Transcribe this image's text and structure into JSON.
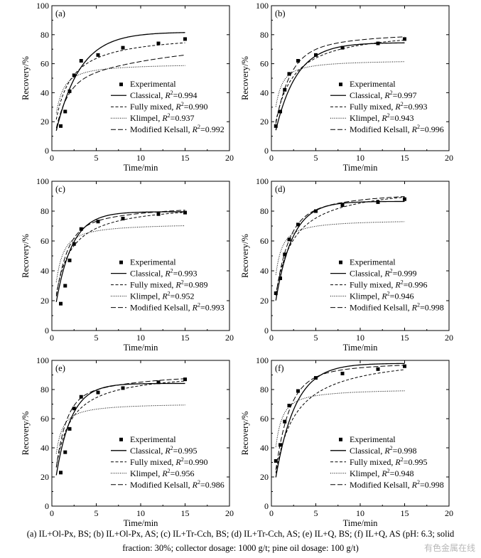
{
  "chart_data": [
    {
      "type": "line",
      "panel_label": "(a)",
      "xlabel": "Time/min",
      "ylabel": "Recovery/%",
      "xlim": [
        0,
        20
      ],
      "ylim": [
        0,
        100
      ],
      "xticks": [
        0,
        5,
        10,
        15,
        20
      ],
      "yticks": [
        0,
        20,
        40,
        60,
        80,
        100
      ],
      "legend_position": "center-right",
      "experimental": {
        "name": "Experimental",
        "x": [
          1,
          1.5,
          2,
          2.5,
          3.3,
          5.2,
          8,
          12,
          15
        ],
        "y": [
          17,
          27,
          41,
          52,
          62,
          66,
          71,
          74,
          77
        ]
      },
      "series": [
        {
          "name": "Classical",
          "r2": "0.994",
          "style": "solid",
          "model": "classical",
          "rmax": 81.8,
          "k": 0.37
        },
        {
          "name": "Fully mixed",
          "r2": "0.990",
          "style": "dashed",
          "model": "fullymixed",
          "rmax": 81.3,
          "k": 0.72
        },
        {
          "name": "Klimpel",
          "r2": "0.937",
          "style": "dotted",
          "model": "klimpel",
          "rmax": 60.3,
          "k": 2.5
        },
        {
          "name": "Modified Kelsall",
          "r2": "0.992",
          "style": "longdash",
          "model": "kelsall",
          "rmax": 75,
          "kf": 0.48,
          "fast": 0.6,
          "ks": 0.0
        }
      ]
    },
    {
      "type": "line",
      "panel_label": "(b)",
      "xlabel": "Time/min",
      "ylabel": "Recovery/%",
      "xlim": [
        0,
        20
      ],
      "ylim": [
        0,
        100
      ],
      "xticks": [
        0,
        5,
        10,
        15,
        20
      ],
      "yticks": [
        0,
        20,
        40,
        60,
        80,
        100
      ],
      "legend_position": "center-right",
      "experimental": {
        "name": "Experimental",
        "x": [
          0.5,
          1,
          1.5,
          2,
          3,
          5,
          8,
          12,
          15
        ],
        "y": [
          17,
          27,
          42,
          53,
          62,
          66,
          71,
          74,
          77
        ]
      },
      "series": [
        {
          "name": "Classical",
          "r2": "0.997",
          "style": "solid",
          "model": "classical",
          "rmax": 74.5,
          "k": 0.42
        },
        {
          "name": "Fully mixed",
          "r2": "0.993",
          "style": "dashed",
          "model": "fullymixed",
          "rmax": 84.5,
          "k": 0.62
        },
        {
          "name": "Klimpel",
          "r2": "0.943",
          "style": "dotted",
          "model": "klimpel",
          "rmax": 62.8,
          "k": 3.0
        },
        {
          "name": "Modified Kelsall",
          "r2": "0.996",
          "style": "longdash",
          "model": "kelsall",
          "rmax": 80.5,
          "kf": 0.4,
          "fast": 0.8,
          "ks": 0.06
        }
      ]
    },
    {
      "type": "line",
      "panel_label": "(c)",
      "xlabel": "Time/min",
      "ylabel": "Recovery/%",
      "xlim": [
        0,
        20
      ],
      "ylim": [
        0,
        100
      ],
      "xticks": [
        0,
        5,
        10,
        15,
        20
      ],
      "yticks": [
        0,
        20,
        40,
        60,
        80,
        100
      ],
      "legend_position": "center-right",
      "experimental": {
        "name": "Experimental",
        "x": [
          1,
          1.5,
          2,
          2.5,
          3.3,
          5.2,
          8,
          12,
          15
        ],
        "y": [
          18,
          30,
          47,
          58,
          68,
          73,
          75,
          78,
          79
        ]
      },
      "series": [
        {
          "name": "Classical",
          "r2": "0.993",
          "style": "solid",
          "model": "classical",
          "rmax": 79.6,
          "k": 0.55
        },
        {
          "name": "Fully mixed",
          "r2": "0.989",
          "style": "dashed",
          "model": "fullymixed",
          "rmax": 86.0,
          "k": 0.78
        },
        {
          "name": "Klimpel",
          "r2": "0.952",
          "style": "dotted",
          "model": "klimpel",
          "rmax": 72.0,
          "k": 2.7
        },
        {
          "name": "Modified Kelsall",
          "r2": "0.993",
          "style": "longdash",
          "model": "kelsall",
          "rmax": 83.0,
          "kf": 0.5,
          "fast": 0.8,
          "ks": 0.05
        }
      ]
    },
    {
      "type": "line",
      "panel_label": "(d)",
      "xlabel": "Time/min",
      "ylabel": "Recovery/%",
      "xlim": [
        0,
        20
      ],
      "ylim": [
        0,
        100
      ],
      "xticks": [
        0,
        5,
        10,
        15,
        20
      ],
      "yticks": [
        0,
        20,
        40,
        60,
        80,
        100
      ],
      "legend_position": "center-right",
      "experimental": {
        "name": "Experimental",
        "x": [
          0.5,
          1,
          1.5,
          2,
          3,
          5,
          8,
          12,
          15
        ],
        "y": [
          25,
          35,
          51,
          61,
          71,
          80,
          84,
          86,
          88
        ]
      },
      "series": [
        {
          "name": "Classical",
          "r2": "0.999",
          "style": "solid",
          "model": "classical",
          "rmax": 86.5,
          "k": 0.53
        },
        {
          "name": "Fully mixed",
          "r2": "0.996",
          "style": "dashed",
          "model": "fullymixed",
          "rmax": 98.5,
          "k": 0.65
        },
        {
          "name": "Klimpel",
          "r2": "0.946",
          "style": "dotted",
          "model": "klimpel",
          "rmax": 74.5,
          "k": 3.2
        },
        {
          "name": "Modified Kelsall",
          "r2": "0.998",
          "style": "longdash",
          "model": "kelsall",
          "rmax": 92.0,
          "kf": 0.45,
          "fast": 0.8,
          "ks": 0.06
        }
      ]
    },
    {
      "type": "line",
      "panel_label": "(e)",
      "xlabel": "Time/min",
      "ylabel": "Recovery/%",
      "xlim": [
        0,
        20
      ],
      "ylim": [
        0,
        100
      ],
      "xticks": [
        0,
        5,
        10,
        15,
        20
      ],
      "yticks": [
        0,
        20,
        40,
        60,
        80,
        100
      ],
      "legend_position": "center-right",
      "experimental": {
        "name": "Experimental",
        "x": [
          1,
          1.5,
          2,
          2.5,
          3.3,
          5.2,
          8,
          12,
          15
        ],
        "y": [
          23,
          37,
          53,
          67,
          75,
          78,
          81,
          85,
          87
        ]
      },
      "series": [
        {
          "name": "Classical",
          "r2": "0.995",
          "style": "solid",
          "model": "classical",
          "rmax": 84.2,
          "k": 0.58
        },
        {
          "name": "Fully mixed",
          "r2": "0.990",
          "style": "dashed",
          "model": "fullymixed",
          "rmax": 93.0,
          "k": 0.8
        },
        {
          "name": "Klimpel",
          "r2": "0.956",
          "style": "dotted",
          "model": "klimpel",
          "rmax": 70.8,
          "k": 3.3
        },
        {
          "name": "Modified Kelsall",
          "r2": "0.986",
          "style": "longdash",
          "model": "kelsall",
          "rmax": 90.0,
          "kf": 0.55,
          "fast": 0.8,
          "ks": 0.05
        }
      ]
    },
    {
      "type": "line",
      "panel_label": "(f)",
      "xlabel": "Time/min",
      "ylabel": "Recovery/%",
      "xlim": [
        0,
        20
      ],
      "ylim": [
        0,
        100
      ],
      "xticks": [
        0,
        5,
        10,
        15,
        20
      ],
      "yticks": [
        0,
        20,
        40,
        60,
        80,
        100
      ],
      "legend_position": "center-right",
      "experimental": {
        "name": "Experimental",
        "x": [
          0.5,
          1,
          1.5,
          2,
          3,
          5,
          8,
          12,
          15
        ],
        "y": [
          31,
          42,
          58,
          69,
          79,
          88,
          91,
          94,
          96
        ]
      },
      "series": [
        {
          "name": "Classical",
          "r2": "0.998",
          "style": "solid",
          "model": "classical",
          "rmax": 98.0,
          "k": 0.45
        },
        {
          "name": "Fully mixed",
          "r2": "0.995",
          "style": "dashed",
          "model": "fullymixed",
          "rmax": 105.0,
          "k": 0.55
        },
        {
          "name": "Klimpel",
          "r2": "0.948",
          "style": "dotted",
          "model": "klimpel",
          "rmax": 80.8,
          "k": 3.2
        },
        {
          "name": "Modified Kelsall",
          "r2": "0.998",
          "style": "longdash",
          "model": "kelsall",
          "rmax": 98.0,
          "kf": 0.42,
          "fast": 0.85,
          "ks": 0.08
        }
      ]
    }
  ],
  "caption": {
    "line1": "(a) IL+Ol-Px, BS; (b) IL+Ol-Px, AS; (c) IL+Tr-Cch, BS; (d) IL+Tr-Cch, AS; (e) IL+Q, BS; (f) IL+Q, AS (pH: 6.3; solid",
    "line2": "fraction: 30%; collector dosage: 1000 g/t; pine oil dosage: 100 g/t)"
  },
  "watermark": "有色金属在线"
}
